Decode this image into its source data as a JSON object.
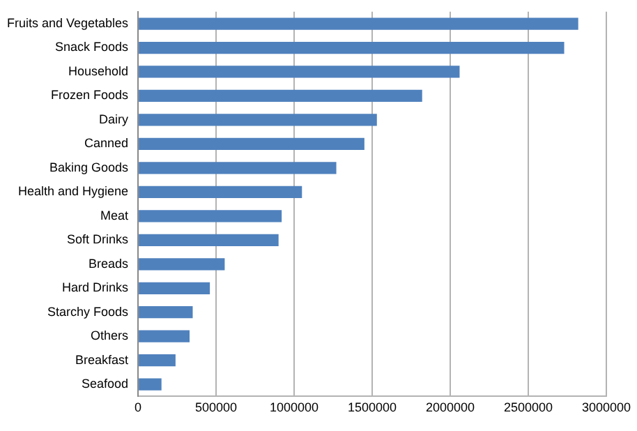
{
  "chart_data": {
    "type": "bar",
    "orientation": "horizontal",
    "categories": [
      "Fruits and Vegetables",
      "Snack Foods",
      "Household",
      "Frozen Foods",
      "Dairy",
      "Canned",
      "Baking Goods",
      "Health and Hygiene",
      "Meat",
      "Soft Drinks",
      "Breads",
      "Hard Drinks",
      "Starchy Foods",
      "Others",
      "Breakfast",
      "Seafood"
    ],
    "values": [
      2820000,
      2730000,
      2060000,
      1820000,
      1530000,
      1450000,
      1270000,
      1050000,
      920000,
      900000,
      555000,
      460000,
      350000,
      330000,
      240000,
      150000
    ],
    "color": "#4f81bd",
    "xlim": [
      0,
      3000000
    ],
    "xticks": [
      0,
      500000,
      1000000,
      1500000,
      2000000,
      2500000,
      3000000
    ],
    "grid": "x",
    "legend": false
  }
}
